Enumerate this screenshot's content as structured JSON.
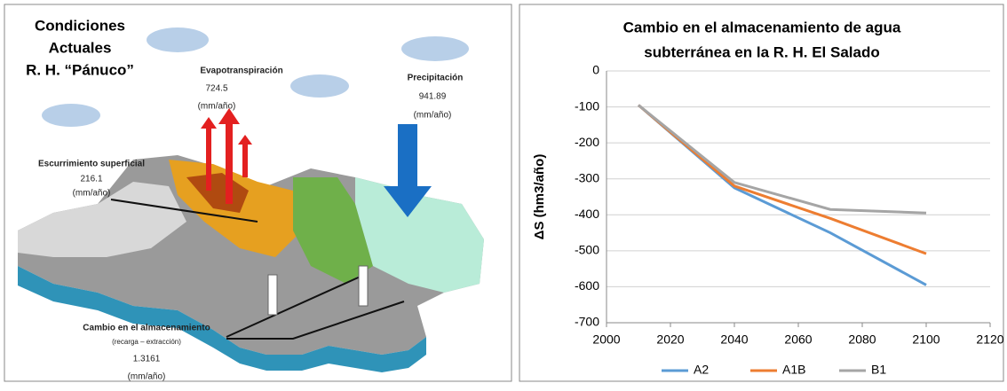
{
  "diagram": {
    "title": [
      "Condiciones",
      "Actuales",
      "R. H. “Pánuco”"
    ],
    "evapotranspiration": {
      "label": "Evapotranspiración",
      "value": "724.5",
      "unit": "(mm/año)"
    },
    "precipitation": {
      "label": "Precipitación",
      "value": "941.89",
      "unit": "(mm/año)"
    },
    "runoff": {
      "label": "Escurrimiento superficial",
      "value": "216.1",
      "unit": "(mm/año)"
    },
    "storage": {
      "label": "Cambio en el almacenamiento",
      "note": "(recarga – extracción)",
      "value": "1.3161",
      "unit": "(mm/año)"
    }
  },
  "chart_data": {
    "type": "line",
    "title": [
      "Cambio en el almacenamiento de agua",
      "subterránea en la R. H. El Salado"
    ],
    "ylabel": "ΔS (hm3/año)",
    "x": [
      2010,
      2040,
      2070,
      2100
    ],
    "series": [
      {
        "name": "A2",
        "color": "#5b9bd5",
        "values": [
          -95,
          -325,
          -450,
          -595
        ]
      },
      {
        "name": "A1B",
        "color": "#ed7d31",
        "values": [
          -95,
          -320,
          -410,
          -508
        ]
      },
      {
        "name": "B1",
        "color": "#a5a5a5",
        "values": [
          -95,
          -310,
          -385,
          -395
        ]
      }
    ],
    "xlim": [
      2000,
      2120
    ],
    "xticks": [
      2000,
      2020,
      2040,
      2060,
      2080,
      2100,
      2120
    ],
    "ylim": [
      -700,
      0
    ],
    "yticks": [
      0,
      -100,
      -200,
      -300,
      -400,
      -500,
      -600,
      -700
    ],
    "grid": true,
    "legend": "bottom"
  }
}
